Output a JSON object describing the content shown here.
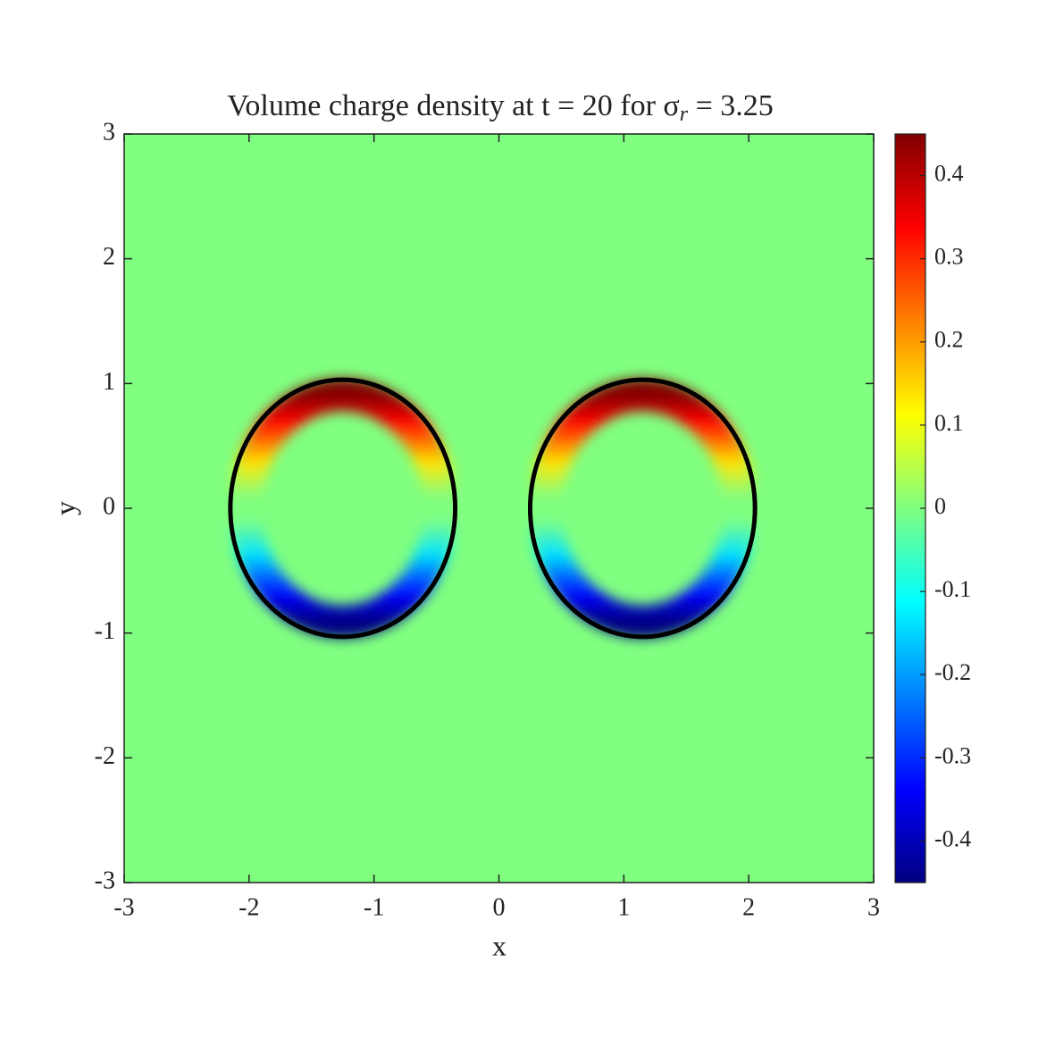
{
  "chart_data": {
    "type": "heatmap",
    "title": {
      "text": "Volume charge density at t = 20 for σ",
      "subscript": "r",
      "after": " = 3.25"
    },
    "x_label": "x",
    "y_label": "y",
    "xlim": [
      -3,
      3
    ],
    "ylim": [
      -3,
      3
    ],
    "xticks": [
      -3,
      -2,
      -1,
      0,
      1,
      2,
      3
    ],
    "yticks": [
      -3,
      -2,
      -1,
      0,
      1,
      2,
      3
    ],
    "colormap": "jet",
    "clim": [
      -0.45,
      0.45
    ],
    "colorbar_ticks": [
      -0.4,
      -0.3,
      -0.2,
      -0.1,
      0,
      0.1,
      0.2,
      0.3,
      0.4
    ],
    "background_value": 0,
    "drops": [
      {
        "center": [
          -1.25,
          0
        ],
        "radii": [
          0.9,
          1.03
        ],
        "top": 0.45,
        "bottom": -0.45
      },
      {
        "center": [
          1.15,
          0
        ],
        "radii": [
          0.9,
          1.03
        ],
        "top": 0.45,
        "bottom": -0.45
      }
    ],
    "outline_color": "#000000"
  }
}
